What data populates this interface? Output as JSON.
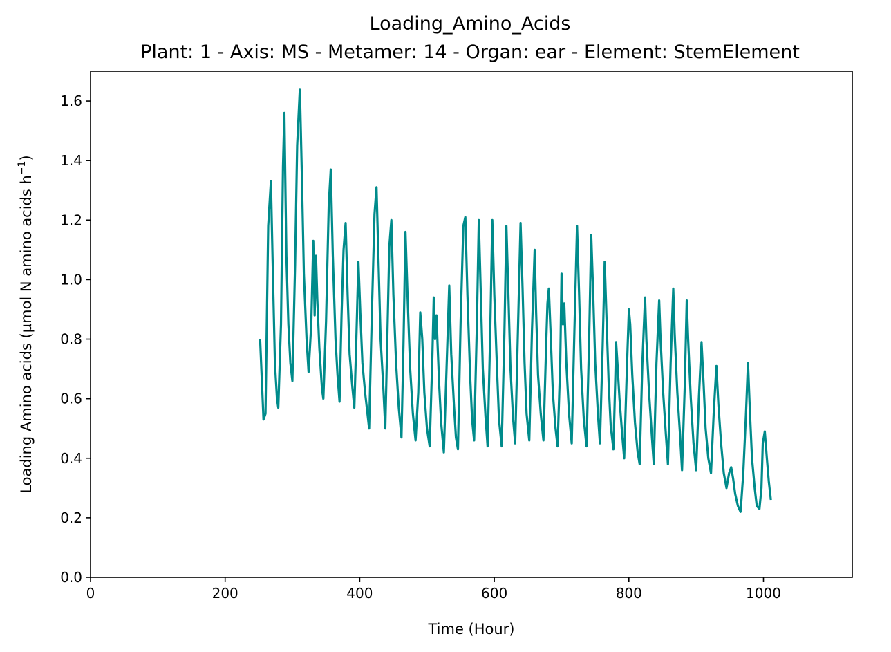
{
  "chart_data": {
    "type": "line",
    "title": "Loading_Amino_Acids",
    "subtitle": "Plant: 1 - Axis: MS - Metamer: 14 - Organ: ear - Element: StemElement",
    "xlabel": "Time (Hour)",
    "ylabel_main": "Loading Amino acids (µmol N amino acids h",
    "ylabel_sup": "−1",
    "ylabel_close": ")",
    "xlim": [
      0,
      1132
    ],
    "ylim": [
      0,
      1.7
    ],
    "x_ticks": [
      0,
      200,
      400,
      600,
      800,
      1000
    ],
    "x_tick_labels": [
      "0",
      "200",
      "400",
      "600",
      "800",
      "1000"
    ],
    "y_ticks": [
      0.0,
      0.2,
      0.4,
      0.6,
      0.8,
      1.0,
      1.2,
      1.4,
      1.6
    ],
    "y_tick_labels": [
      "0.0",
      "0.2",
      "0.4",
      "0.6",
      "0.8",
      "1.0",
      "1.2",
      "1.4",
      "1.6"
    ],
    "grid": false,
    "legend": "none",
    "series": [
      {
        "color": "#008b8b",
        "points": [
          [
            252,
            0.8
          ],
          [
            257,
            0.53
          ],
          [
            260,
            0.55
          ],
          [
            264,
            1.18
          ],
          [
            268,
            1.33
          ],
          [
            271,
            1.02
          ],
          [
            274,
            0.72
          ],
          [
            277,
            0.6
          ],
          [
            279,
            0.57
          ],
          [
            283,
            0.85
          ],
          [
            286,
            1.38
          ],
          [
            288,
            1.56
          ],
          [
            291,
            1.08
          ],
          [
            294,
            0.85
          ],
          [
            297,
            0.72
          ],
          [
            300,
            0.66
          ],
          [
            304,
            1.05
          ],
          [
            307,
            1.45
          ],
          [
            311,
            1.64
          ],
          [
            314,
            1.35
          ],
          [
            317,
            1.02
          ],
          [
            321,
            0.8
          ],
          [
            324,
            0.69
          ],
          [
            328,
            0.85
          ],
          [
            331,
            1.13
          ],
          [
            333,
            0.88
          ],
          [
            335,
            1.08
          ],
          [
            337,
            0.93
          ],
          [
            340,
            0.77
          ],
          [
            344,
            0.63
          ],
          [
            346,
            0.6
          ],
          [
            350,
            0.86
          ],
          [
            354,
            1.25
          ],
          [
            357,
            1.37
          ],
          [
            360,
            1.08
          ],
          [
            364,
            0.8
          ],
          [
            367,
            0.68
          ],
          [
            370,
            0.59
          ],
          [
            373,
            0.88
          ],
          [
            376,
            1.1
          ],
          [
            379,
            1.19
          ],
          [
            382,
            0.95
          ],
          [
            385,
            0.75
          ],
          [
            389,
            0.64
          ],
          [
            392,
            0.57
          ],
          [
            395,
            0.8
          ],
          [
            398,
            1.06
          ],
          [
            401,
            0.88
          ],
          [
            404,
            0.72
          ],
          [
            408,
            0.62
          ],
          [
            412,
            0.54
          ],
          [
            414,
            0.5
          ],
          [
            418,
            0.88
          ],
          [
            422,
            1.22
          ],
          [
            425,
            1.31
          ],
          [
            428,
            1.05
          ],
          [
            431,
            0.8
          ],
          [
            435,
            0.64
          ],
          [
            438,
            0.5
          ],
          [
            441,
            0.8
          ],
          [
            444,
            1.11
          ],
          [
            447,
            1.2
          ],
          [
            450,
            0.95
          ],
          [
            454,
            0.72
          ],
          [
            458,
            0.57
          ],
          [
            462,
            0.47
          ],
          [
            465,
            0.78
          ],
          [
            468,
            1.16
          ],
          [
            471,
            0.95
          ],
          [
            475,
            0.7
          ],
          [
            479,
            0.55
          ],
          [
            483,
            0.46
          ],
          [
            487,
            0.62
          ],
          [
            490,
            0.89
          ],
          [
            493,
            0.8
          ],
          [
            496,
            0.62
          ],
          [
            500,
            0.5
          ],
          [
            504,
            0.44
          ],
          [
            508,
            0.74
          ],
          [
            510,
            0.94
          ],
          [
            512,
            0.8
          ],
          [
            514,
            0.88
          ],
          [
            518,
            0.65
          ],
          [
            521,
            0.52
          ],
          [
            525,
            0.42
          ],
          [
            529,
            0.7
          ],
          [
            533,
            0.98
          ],
          [
            536,
            0.75
          ],
          [
            540,
            0.58
          ],
          [
            543,
            0.47
          ],
          [
            546,
            0.43
          ],
          [
            550,
            0.86
          ],
          [
            554,
            1.18
          ],
          [
            557,
            1.21
          ],
          [
            560,
            0.95
          ],
          [
            564,
            0.68
          ],
          [
            567,
            0.53
          ],
          [
            570,
            0.46
          ],
          [
            574,
            0.84
          ],
          [
            577,
            1.2
          ],
          [
            580,
            0.95
          ],
          [
            583,
            0.7
          ],
          [
            587,
            0.54
          ],
          [
            590,
            0.44
          ],
          [
            594,
            0.83
          ],
          [
            597,
            1.2
          ],
          [
            600,
            0.95
          ],
          [
            604,
            0.7
          ],
          [
            607,
            0.53
          ],
          [
            611,
            0.44
          ],
          [
            615,
            0.82
          ],
          [
            618,
            1.18
          ],
          [
            621,
            0.95
          ],
          [
            624,
            0.7
          ],
          [
            628,
            0.53
          ],
          [
            631,
            0.45
          ],
          [
            635,
            0.82
          ],
          [
            639,
            1.19
          ],
          [
            642,
            0.97
          ],
          [
            645,
            0.72
          ],
          [
            648,
            0.55
          ],
          [
            652,
            0.46
          ],
          [
            656,
            0.83
          ],
          [
            660,
            1.1
          ],
          [
            662,
            0.9
          ],
          [
            665,
            0.68
          ],
          [
            669,
            0.55
          ],
          [
            673,
            0.46
          ],
          [
            677,
            0.78
          ],
          [
            679,
            0.92
          ],
          [
            681,
            0.97
          ],
          [
            684,
            0.8
          ],
          [
            687,
            0.62
          ],
          [
            691,
            0.5
          ],
          [
            694,
            0.44
          ],
          [
            698,
            0.72
          ],
          [
            700,
            1.02
          ],
          [
            702,
            0.85
          ],
          [
            704,
            0.92
          ],
          [
            707,
            0.72
          ],
          [
            711,
            0.55
          ],
          [
            715,
            0.45
          ],
          [
            719,
            0.82
          ],
          [
            723,
            1.18
          ],
          [
            726,
            0.95
          ],
          [
            729,
            0.7
          ],
          [
            733,
            0.53
          ],
          [
            737,
            0.44
          ],
          [
            741,
            0.81
          ],
          [
            744,
            1.15
          ],
          [
            747,
            0.95
          ],
          [
            750,
            0.72
          ],
          [
            754,
            0.55
          ],
          [
            757,
            0.45
          ],
          [
            761,
            0.77
          ],
          [
            764,
            1.06
          ],
          [
            767,
            0.85
          ],
          [
            770,
            0.65
          ],
          [
            773,
            0.51
          ],
          [
            777,
            0.43
          ],
          [
            780,
            0.68
          ],
          [
            781,
            0.79
          ],
          [
            783,
            0.72
          ],
          [
            786,
            0.6
          ],
          [
            790,
            0.48
          ],
          [
            793,
            0.4
          ],
          [
            797,
            0.7
          ],
          [
            800,
            0.9
          ],
          [
            802,
            0.85
          ],
          [
            805,
            0.68
          ],
          [
            809,
            0.52
          ],
          [
            813,
            0.42
          ],
          [
            816,
            0.38
          ],
          [
            820,
            0.72
          ],
          [
            824,
            0.94
          ],
          [
            826,
            0.8
          ],
          [
            830,
            0.62
          ],
          [
            834,
            0.48
          ],
          [
            837,
            0.38
          ],
          [
            841,
            0.72
          ],
          [
            845,
            0.93
          ],
          [
            847,
            0.8
          ],
          [
            851,
            0.62
          ],
          [
            855,
            0.48
          ],
          [
            858,
            0.38
          ],
          [
            862,
            0.72
          ],
          [
            866,
            0.97
          ],
          [
            868,
            0.82
          ],
          [
            872,
            0.62
          ],
          [
            876,
            0.48
          ],
          [
            879,
            0.36
          ],
          [
            883,
            0.64
          ],
          [
            886,
            0.93
          ],
          [
            888,
            0.8
          ],
          [
            892,
            0.6
          ],
          [
            896,
            0.45
          ],
          [
            900,
            0.36
          ],
          [
            904,
            0.6
          ],
          [
            908,
            0.79
          ],
          [
            911,
            0.65
          ],
          [
            914,
            0.5
          ],
          [
            918,
            0.4
          ],
          [
            922,
            0.35
          ],
          [
            926,
            0.55
          ],
          [
            930,
            0.71
          ],
          [
            933,
            0.58
          ],
          [
            937,
            0.45
          ],
          [
            941,
            0.35
          ],
          [
            945,
            0.3
          ],
          [
            949,
            0.35
          ],
          [
            952,
            0.37
          ],
          [
            955,
            0.33
          ],
          [
            958,
            0.28
          ],
          [
            962,
            0.24
          ],
          [
            966,
            0.22
          ],
          [
            970,
            0.35
          ],
          [
            974,
            0.55
          ],
          [
            977,
            0.72
          ],
          [
            980,
            0.55
          ],
          [
            983,
            0.4
          ],
          [
            987,
            0.3
          ],
          [
            990,
            0.24
          ],
          [
            994,
            0.23
          ],
          [
            997,
            0.3
          ],
          [
            999,
            0.45
          ],
          [
            1002,
            0.49
          ],
          [
            1005,
            0.4
          ],
          [
            1008,
            0.32
          ],
          [
            1011,
            0.26
          ]
        ]
      }
    ]
  }
}
